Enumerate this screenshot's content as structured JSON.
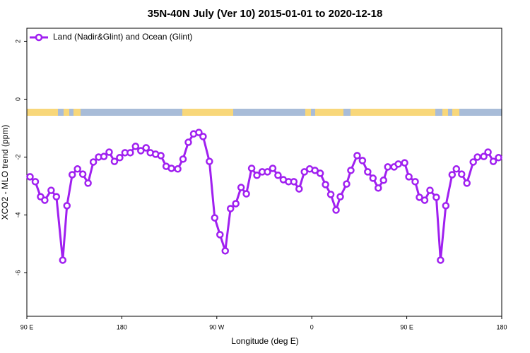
{
  "chart_data": {
    "type": "line",
    "title": "35N-40N July (Ver 10)   2015-01-01 to 2020-12-18",
    "x_label": "Longitude (deg E)",
    "y_label": "XCO2 - MLO trend (ppm)",
    "xlim": [
      90,
      540
    ],
    "ylim": [
      -7.5,
      2.45
    ],
    "xticks": [
      {
        "value": 90,
        "label": "90 E"
      },
      180,
      {
        "value": 270,
        "label": "90 W"
      },
      {
        "value": 360,
        "label": "0"
      },
      {
        "value": 450,
        "label": "90 E"
      },
      {
        "value": 540,
        "label": "180"
      }
    ],
    "yticks": [
      -6,
      -4,
      -2,
      0,
      2
    ],
    "legend": "top-left",
    "series": [
      {
        "name": "Land (Nadir&Glint) and Ocean (Glint)",
        "color": "#a020f0",
        "x": [
          93,
          98,
          103,
          107,
          113,
          118,
          124,
          128,
          133,
          138,
          143,
          148,
          153,
          158,
          163,
          168,
          173,
          178,
          183,
          188,
          193,
          198,
          203,
          207,
          212,
          217,
          222,
          227,
          233,
          238,
          243,
          248,
          253,
          257,
          263,
          268,
          273,
          278,
          283,
          288,
          293,
          298,
          303,
          308,
          313,
          318,
          323,
          328,
          333,
          338,
          343,
          348,
          353,
          358,
          363,
          368,
          373,
          378,
          383,
          387,
          393,
          397,
          403,
          408,
          413,
          418,
          423,
          428,
          432,
          438,
          442,
          448,
          452,
          458,
          462,
          467,
          472,
          478,
          482,
          487,
          493,
          497,
          502,
          507,
          513,
          517,
          523,
          527,
          532,
          537
        ],
        "values": [
          -2.68,
          -2.85,
          -3.37,
          -3.49,
          -3.15,
          -3.37,
          -5.56,
          -3.68,
          -2.61,
          -2.41,
          -2.59,
          -2.9,
          -2.17,
          -2.0,
          -1.98,
          -1.83,
          -2.15,
          -2.02,
          -1.85,
          -1.85,
          -1.63,
          -1.78,
          -1.68,
          -1.85,
          -1.9,
          -1.95,
          -2.32,
          -2.39,
          -2.41,
          -2.07,
          -1.49,
          -1.2,
          -1.15,
          -1.29,
          -2.15,
          -4.1,
          -4.68,
          -5.24,
          -3.78,
          -3.61,
          -3.05,
          -3.27,
          -2.39,
          -2.63,
          -2.51,
          -2.51,
          -2.39,
          -2.63,
          -2.78,
          -2.85,
          -2.85,
          -3.1,
          -2.51,
          -2.41,
          -2.46,
          -2.56,
          -2.95,
          -3.29,
          -3.83,
          -3.37,
          -2.93,
          -2.46,
          -1.95,
          -2.12,
          -2.51,
          -2.73,
          -3.07,
          -2.8,
          -2.34,
          -2.34,
          -2.24,
          -2.2,
          -2.68,
          -2.85,
          -3.39,
          -3.49,
          -3.15,
          -3.39,
          -5.56,
          -3.68,
          -2.61,
          -2.41,
          -2.59,
          -2.9,
          -2.17,
          -2.0,
          -1.98,
          -1.83,
          -2.15,
          -2.02
        ]
      }
    ]
  }
}
